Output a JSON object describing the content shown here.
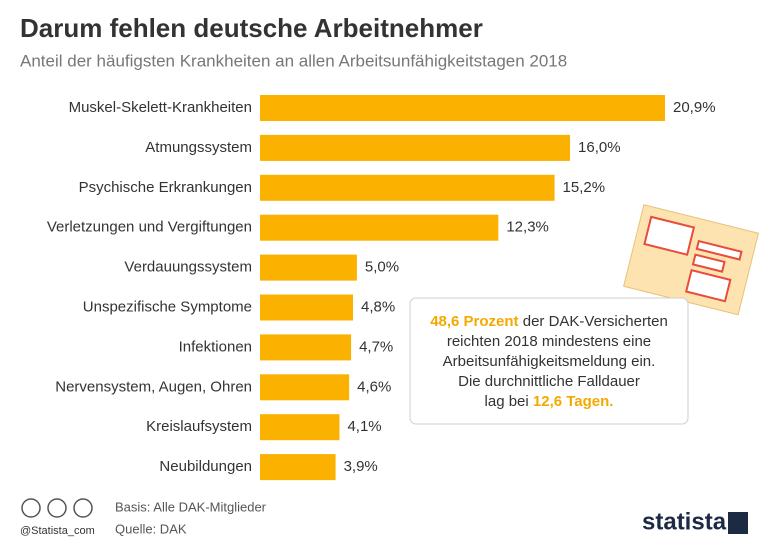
{
  "chart_data": {
    "type": "bar",
    "orientation": "horizontal",
    "title": "Darum fehlen deutsche Arbeitnehmer",
    "subtitle": "Anteil der häufigsten Krankheiten an allen Arbeitsunfähigkeitstagen 2018",
    "categories": [
      "Muskel-Skelett-Krankheiten",
      "Atmungssystem",
      "Psychische Erkrankungen",
      "Verletzungen und Vergiftungen",
      "Verdauungssystem",
      "Unspezifische Symptome",
      "Infektionen",
      "Nervensystem, Augen, Ohren",
      "Kreislaufsystem",
      "Neubildungen"
    ],
    "values": [
      20.9,
      16.0,
      15.2,
      12.3,
      5.0,
      4.8,
      4.7,
      4.6,
      4.1,
      3.9
    ],
    "value_labels": [
      "20,9%",
      "16,0%",
      "15,2%",
      "12,3%",
      "5,0%",
      "4,8%",
      "4,7%",
      "4,6%",
      "4,1%",
      "3,9%"
    ],
    "color": "#fbb100",
    "annotation": [
      [
        {
          "text": "48,6 Prozent",
          "highlight": true
        },
        {
          "text": " der DAK-Versicherten"
        }
      ],
      [
        {
          "text": "reichten 2018 mindestens eine"
        }
      ],
      [
        {
          "text": "Arbeitsunfähigkeitsmeldung ein."
        }
      ],
      [
        {
          "text": "Die durchnittliche Falldauer"
        }
      ],
      [
        {
          "text": "lag bei "
        },
        {
          "text": "12,6 Tagen.",
          "highlight": true
        }
      ]
    ],
    "highlight_color": "#f5a800",
    "footer": {
      "basis": "Basis: Alle DAK-Mitglieder",
      "source": "Quelle: DAK",
      "handle": "@Statista_com",
      "brand": "statista"
    }
  }
}
